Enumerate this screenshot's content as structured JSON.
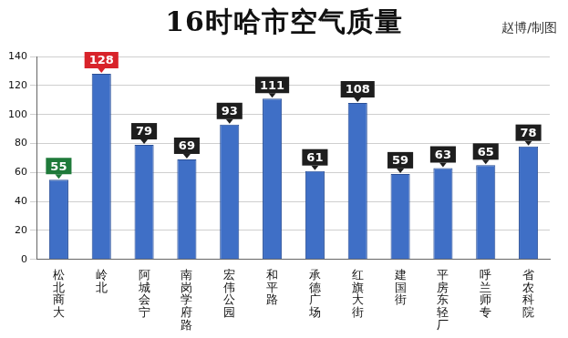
{
  "chart_data": {
    "type": "bar",
    "title": "16时哈市空气质量",
    "subtitle": "赵博/制图",
    "categories": [
      "松北商大",
      "岭北",
      "阿城会宁",
      "南岗学府路",
      "宏伟公园",
      "和平路",
      "承德广场",
      "红旗大街",
      "建国街",
      "平房东轻厂",
      "呼兰师专",
      "省农科院"
    ],
    "values": [
      55,
      128,
      79,
      69,
      93,
      111,
      61,
      108,
      59,
      63,
      65,
      78
    ],
    "color": "#3f6fc6",
    "ylim": [
      0,
      140
    ],
    "yticks": [
      0,
      20,
      40,
      60,
      80,
      100,
      120,
      140
    ],
    "grid": true,
    "data_labels": true
  }
}
